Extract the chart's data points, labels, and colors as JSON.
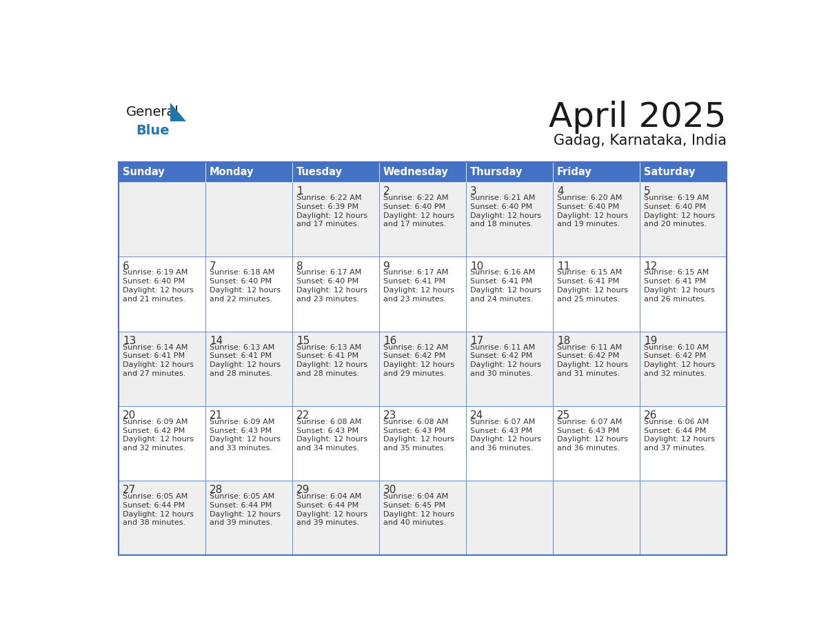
{
  "title": "April 2025",
  "subtitle": "Gadag, Karnataka, India",
  "header_bg": "#4472C4",
  "header_text_color": "#FFFFFF",
  "cell_bg_odd": "#EFEFEF",
  "cell_bg_even": "#FFFFFF",
  "text_color": "#333333",
  "border_color": "#4472C4",
  "days_of_week": [
    "Sunday",
    "Monday",
    "Tuesday",
    "Wednesday",
    "Thursday",
    "Friday",
    "Saturday"
  ],
  "weeks": [
    [
      {
        "day": "",
        "sunrise": "",
        "sunset": "",
        "daylight": ""
      },
      {
        "day": "",
        "sunrise": "",
        "sunset": "",
        "daylight": ""
      },
      {
        "day": "1",
        "sunrise": "Sunrise: 6:22 AM",
        "sunset": "Sunset: 6:39 PM",
        "daylight": "Daylight: 12 hours\nand 17 minutes."
      },
      {
        "day": "2",
        "sunrise": "Sunrise: 6:22 AM",
        "sunset": "Sunset: 6:40 PM",
        "daylight": "Daylight: 12 hours\nand 17 minutes."
      },
      {
        "day": "3",
        "sunrise": "Sunrise: 6:21 AM",
        "sunset": "Sunset: 6:40 PM",
        "daylight": "Daylight: 12 hours\nand 18 minutes."
      },
      {
        "day": "4",
        "sunrise": "Sunrise: 6:20 AM",
        "sunset": "Sunset: 6:40 PM",
        "daylight": "Daylight: 12 hours\nand 19 minutes."
      },
      {
        "day": "5",
        "sunrise": "Sunrise: 6:19 AM",
        "sunset": "Sunset: 6:40 PM",
        "daylight": "Daylight: 12 hours\nand 20 minutes."
      }
    ],
    [
      {
        "day": "6",
        "sunrise": "Sunrise: 6:19 AM",
        "sunset": "Sunset: 6:40 PM",
        "daylight": "Daylight: 12 hours\nand 21 minutes."
      },
      {
        "day": "7",
        "sunrise": "Sunrise: 6:18 AM",
        "sunset": "Sunset: 6:40 PM",
        "daylight": "Daylight: 12 hours\nand 22 minutes."
      },
      {
        "day": "8",
        "sunrise": "Sunrise: 6:17 AM",
        "sunset": "Sunset: 6:40 PM",
        "daylight": "Daylight: 12 hours\nand 23 minutes."
      },
      {
        "day": "9",
        "sunrise": "Sunrise: 6:17 AM",
        "sunset": "Sunset: 6:41 PM",
        "daylight": "Daylight: 12 hours\nand 23 minutes."
      },
      {
        "day": "10",
        "sunrise": "Sunrise: 6:16 AM",
        "sunset": "Sunset: 6:41 PM",
        "daylight": "Daylight: 12 hours\nand 24 minutes."
      },
      {
        "day": "11",
        "sunrise": "Sunrise: 6:15 AM",
        "sunset": "Sunset: 6:41 PM",
        "daylight": "Daylight: 12 hours\nand 25 minutes."
      },
      {
        "day": "12",
        "sunrise": "Sunrise: 6:15 AM",
        "sunset": "Sunset: 6:41 PM",
        "daylight": "Daylight: 12 hours\nand 26 minutes."
      }
    ],
    [
      {
        "day": "13",
        "sunrise": "Sunrise: 6:14 AM",
        "sunset": "Sunset: 6:41 PM",
        "daylight": "Daylight: 12 hours\nand 27 minutes."
      },
      {
        "day": "14",
        "sunrise": "Sunrise: 6:13 AM",
        "sunset": "Sunset: 6:41 PM",
        "daylight": "Daylight: 12 hours\nand 28 minutes."
      },
      {
        "day": "15",
        "sunrise": "Sunrise: 6:13 AM",
        "sunset": "Sunset: 6:41 PM",
        "daylight": "Daylight: 12 hours\nand 28 minutes."
      },
      {
        "day": "16",
        "sunrise": "Sunrise: 6:12 AM",
        "sunset": "Sunset: 6:42 PM",
        "daylight": "Daylight: 12 hours\nand 29 minutes."
      },
      {
        "day": "17",
        "sunrise": "Sunrise: 6:11 AM",
        "sunset": "Sunset: 6:42 PM",
        "daylight": "Daylight: 12 hours\nand 30 minutes."
      },
      {
        "day": "18",
        "sunrise": "Sunrise: 6:11 AM",
        "sunset": "Sunset: 6:42 PM",
        "daylight": "Daylight: 12 hours\nand 31 minutes."
      },
      {
        "day": "19",
        "sunrise": "Sunrise: 6:10 AM",
        "sunset": "Sunset: 6:42 PM",
        "daylight": "Daylight: 12 hours\nand 32 minutes."
      }
    ],
    [
      {
        "day": "20",
        "sunrise": "Sunrise: 6:09 AM",
        "sunset": "Sunset: 6:42 PM",
        "daylight": "Daylight: 12 hours\nand 32 minutes."
      },
      {
        "day": "21",
        "sunrise": "Sunrise: 6:09 AM",
        "sunset": "Sunset: 6:43 PM",
        "daylight": "Daylight: 12 hours\nand 33 minutes."
      },
      {
        "day": "22",
        "sunrise": "Sunrise: 6:08 AM",
        "sunset": "Sunset: 6:43 PM",
        "daylight": "Daylight: 12 hours\nand 34 minutes."
      },
      {
        "day": "23",
        "sunrise": "Sunrise: 6:08 AM",
        "sunset": "Sunset: 6:43 PM",
        "daylight": "Daylight: 12 hours\nand 35 minutes."
      },
      {
        "day": "24",
        "sunrise": "Sunrise: 6:07 AM",
        "sunset": "Sunset: 6:43 PM",
        "daylight": "Daylight: 12 hours\nand 36 minutes."
      },
      {
        "day": "25",
        "sunrise": "Sunrise: 6:07 AM",
        "sunset": "Sunset: 6:43 PM",
        "daylight": "Daylight: 12 hours\nand 36 minutes."
      },
      {
        "day": "26",
        "sunrise": "Sunrise: 6:06 AM",
        "sunset": "Sunset: 6:44 PM",
        "daylight": "Daylight: 12 hours\nand 37 minutes."
      }
    ],
    [
      {
        "day": "27",
        "sunrise": "Sunrise: 6:05 AM",
        "sunset": "Sunset: 6:44 PM",
        "daylight": "Daylight: 12 hours\nand 38 minutes."
      },
      {
        "day": "28",
        "sunrise": "Sunrise: 6:05 AM",
        "sunset": "Sunset: 6:44 PM",
        "daylight": "Daylight: 12 hours\nand 39 minutes."
      },
      {
        "day": "29",
        "sunrise": "Sunrise: 6:04 AM",
        "sunset": "Sunset: 6:44 PM",
        "daylight": "Daylight: 12 hours\nand 39 minutes."
      },
      {
        "day": "30",
        "sunrise": "Sunrise: 6:04 AM",
        "sunset": "Sunset: 6:45 PM",
        "daylight": "Daylight: 12 hours\nand 40 minutes."
      },
      {
        "day": "",
        "sunrise": "",
        "sunset": "",
        "daylight": ""
      },
      {
        "day": "",
        "sunrise": "",
        "sunset": "",
        "daylight": ""
      },
      {
        "day": "",
        "sunrise": "",
        "sunset": "",
        "daylight": ""
      }
    ]
  ],
  "logo_text_general": "General",
  "logo_text_blue": "Blue",
  "logo_color_general": "#1a1a1a",
  "logo_color_blue": "#2176AE",
  "logo_triangle_color": "#2176AE"
}
